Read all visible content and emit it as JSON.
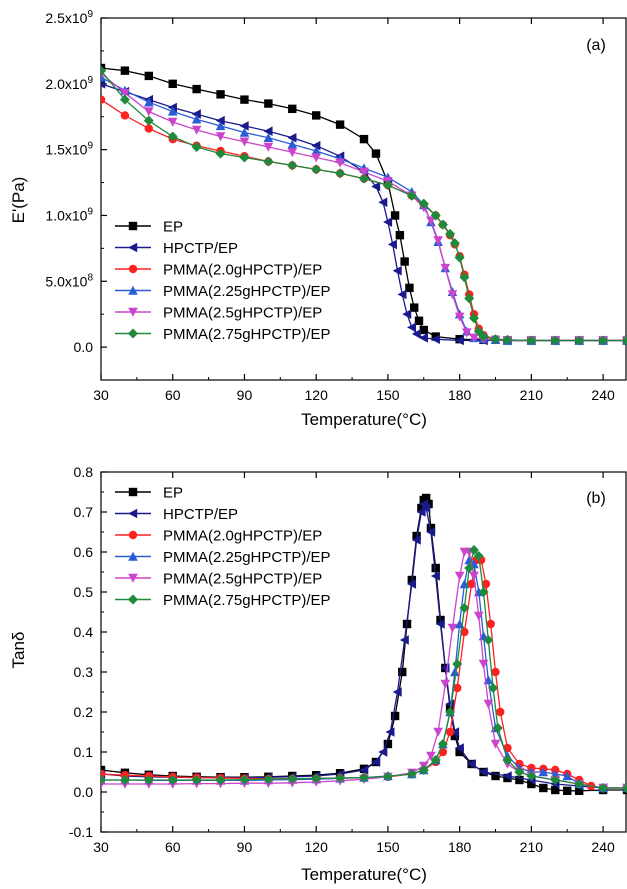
{
  "chart_data": [
    {
      "panel_label": "(a)",
      "type": "line",
      "xlabel": "Temperature(°C)",
      "ylabel": "E'(Pa)",
      "xlim": [
        30,
        250
      ],
      "ylim": [
        -250000000,
        2500000000
      ],
      "xticks": [
        30,
        60,
        90,
        120,
        150,
        180,
        210,
        240
      ],
      "yticks": [
        {
          "value": 0,
          "base": "0.0",
          "exp": ""
        },
        {
          "value": 500000000,
          "base": "5.0x10",
          "exp": "8"
        },
        {
          "value": 1000000000,
          "base": "1.0x10",
          "exp": "9"
        },
        {
          "value": 1500000000,
          "base": "1.5x10",
          "exp": "9"
        },
        {
          "value": 2000000000,
          "base": "2.0x10",
          "exp": "9"
        },
        {
          "value": 2500000000,
          "base": "2.5x10",
          "exp": "9"
        }
      ],
      "legend_position": "bottom-left",
      "series": [
        {
          "name": "EP",
          "color": "#000000",
          "marker": "square",
          "x": [
            30,
            40,
            50,
            60,
            70,
            80,
            90,
            100,
            110,
            120,
            130,
            140,
            145,
            150,
            153,
            155,
            157,
            159,
            161,
            163,
            165,
            170,
            180,
            190,
            200,
            210,
            220,
            230,
            240,
            250
          ],
          "y": [
            2120000000,
            2100000000,
            2060000000,
            2000000000,
            1960000000,
            1920000000,
            1880000000,
            1850000000,
            1810000000,
            1760000000,
            1690000000,
            1580000000,
            1470000000,
            1250000000,
            1000000000,
            850000000,
            650000000,
            450000000,
            300000000,
            200000000,
            130000000,
            80000000,
            60000000,
            55000000,
            50000000,
            50000000,
            50000000,
            50000000,
            50000000,
            50000000
          ]
        },
        {
          "name": "HPCTP/EP",
          "color": "#1a1a8c",
          "marker": "triangle-left",
          "x": [
            30,
            40,
            50,
            60,
            70,
            80,
            90,
            100,
            110,
            120,
            130,
            140,
            145,
            148,
            150,
            152,
            154,
            156,
            158,
            160,
            162,
            165,
            170,
            180,
            190,
            200,
            210,
            220,
            230,
            240,
            250
          ],
          "y": [
            2000000000,
            1940000000,
            1880000000,
            1820000000,
            1770000000,
            1720000000,
            1680000000,
            1640000000,
            1590000000,
            1530000000,
            1450000000,
            1330000000,
            1220000000,
            1100000000,
            950000000,
            780000000,
            580000000,
            400000000,
            250000000,
            150000000,
            100000000,
            70000000,
            60000000,
            50000000,
            50000000,
            50000000,
            50000000,
            50000000,
            50000000,
            50000000,
            50000000
          ]
        },
        {
          "name": "PMMA(2.0gHPCTP)/EP",
          "color": "#ff2020",
          "marker": "circle",
          "x": [
            30,
            40,
            50,
            60,
            70,
            80,
            90,
            100,
            110,
            120,
            130,
            140,
            150,
            160,
            165,
            170,
            173,
            176,
            178,
            180,
            182,
            184,
            186,
            188,
            190,
            195,
            200,
            210,
            220,
            230,
            240,
            250
          ],
          "y": [
            1880000000,
            1760000000,
            1660000000,
            1580000000,
            1530000000,
            1490000000,
            1450000000,
            1410000000,
            1380000000,
            1350000000,
            1320000000,
            1280000000,
            1230000000,
            1150000000,
            1080000000,
            1000000000,
            930000000,
            850000000,
            780000000,
            690000000,
            550000000,
            400000000,
            250000000,
            140000000,
            90000000,
            60000000,
            55000000,
            50000000,
            50000000,
            50000000,
            50000000,
            50000000
          ]
        },
        {
          "name": "PMMA(2.25gHPCTP)/EP",
          "color": "#2a5cd6",
          "marker": "triangle-up",
          "x": [
            30,
            40,
            50,
            60,
            70,
            80,
            90,
            100,
            110,
            120,
            130,
            140,
            150,
            160,
            165,
            168,
            171,
            174,
            177,
            180,
            183,
            186,
            190,
            195,
            200,
            210,
            220,
            230,
            240,
            250
          ],
          "y": [
            2050000000,
            1950000000,
            1860000000,
            1790000000,
            1730000000,
            1680000000,
            1630000000,
            1590000000,
            1540000000,
            1490000000,
            1430000000,
            1360000000,
            1290000000,
            1180000000,
            1080000000,
            950000000,
            800000000,
            600000000,
            420000000,
            250000000,
            120000000,
            70000000,
            60000000,
            55000000,
            50000000,
            50000000,
            50000000,
            50000000,
            50000000,
            50000000
          ]
        },
        {
          "name": "PMMA(2.5gHPCTP)/EP",
          "color": "#cc44cc",
          "marker": "triangle-down",
          "x": [
            30,
            40,
            50,
            60,
            70,
            80,
            90,
            100,
            110,
            120,
            130,
            140,
            150,
            160,
            165,
            168,
            171,
            174,
            177,
            180,
            183,
            186,
            190,
            195,
            200,
            210,
            220,
            230,
            240,
            250
          ],
          "y": [
            2080000000,
            1930000000,
            1790000000,
            1710000000,
            1650000000,
            1600000000,
            1560000000,
            1520000000,
            1480000000,
            1440000000,
            1400000000,
            1330000000,
            1260000000,
            1150000000,
            1060000000,
            960000000,
            810000000,
            600000000,
            400000000,
            230000000,
            110000000,
            70000000,
            60000000,
            55000000,
            50000000,
            50000000,
            50000000,
            50000000,
            50000000,
            50000000
          ]
        },
        {
          "name": "PMMA(2.75gHPCTP)/EP",
          "color": "#1e8a3c",
          "marker": "diamond",
          "x": [
            30,
            40,
            50,
            60,
            70,
            80,
            90,
            100,
            110,
            120,
            130,
            140,
            150,
            160,
            165,
            170,
            173,
            176,
            178,
            180,
            182,
            184,
            186,
            188,
            190,
            195,
            200,
            210,
            220,
            230,
            240,
            250
          ],
          "y": [
            2100000000,
            1880000000,
            1720000000,
            1600000000,
            1520000000,
            1470000000,
            1440000000,
            1410000000,
            1380000000,
            1350000000,
            1320000000,
            1280000000,
            1230000000,
            1150000000,
            1090000000,
            1000000000,
            930000000,
            860000000,
            790000000,
            680000000,
            530000000,
            370000000,
            220000000,
            120000000,
            80000000,
            60000000,
            55000000,
            50000000,
            50000000,
            50000000,
            50000000,
            50000000
          ]
        }
      ]
    },
    {
      "panel_label": "(b)",
      "type": "line",
      "xlabel": "Temperature(°C)",
      "ylabel": "Tanδ",
      "xlim": [
        30,
        250
      ],
      "ylim": [
        -0.1,
        0.8
      ],
      "xticks": [
        30,
        60,
        90,
        120,
        150,
        180,
        210,
        240
      ],
      "yticks": [
        {
          "value": -0.1,
          "base": "-0.1",
          "exp": ""
        },
        {
          "value": 0.0,
          "base": "0.0",
          "exp": ""
        },
        {
          "value": 0.1,
          "base": "0.1",
          "exp": ""
        },
        {
          "value": 0.2,
          "base": "0.2",
          "exp": ""
        },
        {
          "value": 0.3,
          "base": "0.3",
          "exp": ""
        },
        {
          "value": 0.4,
          "base": "0.4",
          "exp": ""
        },
        {
          "value": 0.5,
          "base": "0.5",
          "exp": ""
        },
        {
          "value": 0.6,
          "base": "0.6",
          "exp": ""
        },
        {
          "value": 0.7,
          "base": "0.7",
          "exp": ""
        },
        {
          "value": 0.8,
          "base": "0.8",
          "exp": ""
        }
      ],
      "legend_position": "top-left",
      "series": [
        {
          "name": "EP",
          "color": "#000000",
          "marker": "square",
          "x": [
            30,
            40,
            50,
            60,
            70,
            80,
            90,
            100,
            110,
            120,
            130,
            140,
            145,
            150,
            153,
            156,
            158,
            160,
            162,
            164,
            165,
            166,
            167,
            168,
            170,
            172,
            174,
            176,
            178,
            180,
            185,
            190,
            195,
            200,
            205,
            210,
            215,
            220,
            225,
            230,
            240,
            250
          ],
          "y": [
            0.055,
            0.048,
            0.043,
            0.04,
            0.038,
            0.037,
            0.037,
            0.038,
            0.04,
            0.042,
            0.047,
            0.058,
            0.075,
            0.12,
            0.19,
            0.3,
            0.42,
            0.53,
            0.64,
            0.71,
            0.73,
            0.735,
            0.72,
            0.66,
            0.56,
            0.43,
            0.31,
            0.21,
            0.14,
            0.1,
            0.07,
            0.05,
            0.04,
            0.035,
            0.03,
            0.02,
            0.01,
            0.005,
            0.003,
            0.003,
            0.005,
            0.005
          ]
        },
        {
          "name": "HPCTP/EP",
          "color": "#1a1a8c",
          "marker": "triangle-left",
          "x": [
            30,
            40,
            50,
            60,
            70,
            80,
            90,
            100,
            110,
            120,
            130,
            140,
            145,
            148,
            151,
            154,
            157,
            160,
            162,
            164,
            165,
            166,
            168,
            170,
            172,
            174,
            176,
            178,
            180,
            185,
            190,
            200,
            210,
            220,
            230,
            240,
            250
          ],
          "y": [
            0.045,
            0.04,
            0.038,
            0.037,
            0.036,
            0.036,
            0.036,
            0.037,
            0.038,
            0.04,
            0.045,
            0.055,
            0.075,
            0.1,
            0.15,
            0.25,
            0.38,
            0.52,
            0.63,
            0.7,
            0.72,
            0.71,
            0.65,
            0.54,
            0.42,
            0.31,
            0.22,
            0.15,
            0.11,
            0.07,
            0.05,
            0.04,
            0.03,
            0.02,
            0.015,
            0.01,
            0.01
          ]
        },
        {
          "name": "PMMA(2.0gHPCTP)/EP",
          "color": "#ff2020",
          "marker": "circle",
          "x": [
            30,
            40,
            50,
            60,
            70,
            80,
            90,
            100,
            110,
            120,
            130,
            140,
            150,
            160,
            165,
            170,
            173,
            176,
            179,
            182,
            185,
            187,
            189,
            191,
            193,
            195,
            197,
            200,
            205,
            210,
            215,
            220,
            225,
            230,
            235,
            240,
            250
          ],
          "y": [
            0.045,
            0.042,
            0.04,
            0.038,
            0.036,
            0.035,
            0.034,
            0.033,
            0.033,
            0.034,
            0.035,
            0.036,
            0.038,
            0.045,
            0.055,
            0.075,
            0.1,
            0.15,
            0.26,
            0.4,
            0.52,
            0.58,
            0.58,
            0.52,
            0.42,
            0.3,
            0.2,
            0.11,
            0.07,
            0.06,
            0.058,
            0.055,
            0.045,
            0.03,
            0.015,
            0.01,
            0.01
          ]
        },
        {
          "name": "PMMA(2.25gHPCTP)/EP",
          "color": "#2a5cd6",
          "marker": "triangle-up",
          "x": [
            30,
            40,
            50,
            60,
            70,
            80,
            90,
            100,
            110,
            120,
            130,
            140,
            150,
            160,
            165,
            170,
            173,
            176,
            178,
            180,
            182,
            184,
            186,
            188,
            190,
            192,
            195,
            200,
            205,
            210,
            215,
            220,
            225,
            230,
            240,
            250
          ],
          "y": [
            0.03,
            0.03,
            0.029,
            0.029,
            0.029,
            0.029,
            0.029,
            0.03,
            0.031,
            0.032,
            0.034,
            0.036,
            0.04,
            0.045,
            0.055,
            0.08,
            0.12,
            0.2,
            0.3,
            0.42,
            0.52,
            0.58,
            0.57,
            0.5,
            0.39,
            0.28,
            0.16,
            0.09,
            0.06,
            0.05,
            0.05,
            0.045,
            0.04,
            0.02,
            0.01,
            0.01
          ]
        },
        {
          "name": "PMMA(2.5gHPCTP)/EP",
          "color": "#cc44cc",
          "marker": "triangle-down",
          "x": [
            30,
            40,
            50,
            60,
            70,
            80,
            90,
            100,
            110,
            120,
            130,
            140,
            150,
            160,
            165,
            168,
            171,
            174,
            177,
            180,
            182,
            184,
            186,
            188,
            190,
            192,
            195,
            200,
            205,
            210,
            220,
            230,
            240,
            250
          ],
          "y": [
            0.02,
            0.02,
            0.02,
            0.02,
            0.021,
            0.021,
            0.022,
            0.022,
            0.023,
            0.025,
            0.028,
            0.032,
            0.038,
            0.048,
            0.065,
            0.09,
            0.15,
            0.27,
            0.41,
            0.54,
            0.6,
            0.6,
            0.54,
            0.44,
            0.32,
            0.22,
            0.12,
            0.07,
            0.05,
            0.04,
            0.03,
            0.02,
            0.01,
            0.01
          ]
        },
        {
          "name": "PMMA(2.75gHPCTP)/EP",
          "color": "#1e8a3c",
          "marker": "diamond",
          "x": [
            30,
            40,
            50,
            60,
            70,
            80,
            90,
            100,
            110,
            120,
            130,
            140,
            150,
            160,
            165,
            170,
            173,
            176,
            179,
            182,
            184,
            186,
            188,
            190,
            192,
            194,
            196,
            200,
            205,
            210,
            220,
            230,
            240,
            250
          ],
          "y": [
            0.03,
            0.03,
            0.03,
            0.03,
            0.03,
            0.03,
            0.031,
            0.032,
            0.033,
            0.034,
            0.035,
            0.036,
            0.039,
            0.045,
            0.055,
            0.08,
            0.12,
            0.2,
            0.32,
            0.46,
            0.56,
            0.605,
            0.59,
            0.5,
            0.38,
            0.26,
            0.16,
            0.08,
            0.05,
            0.04,
            0.03,
            0.02,
            0.01,
            0.01
          ]
        }
      ]
    }
  ]
}
